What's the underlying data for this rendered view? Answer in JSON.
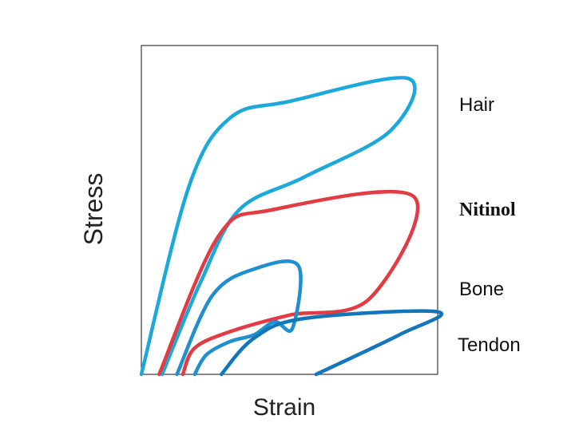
{
  "chart_data": {
    "type": "line",
    "title": "",
    "xlabel": "Strain",
    "ylabel": "Stress",
    "grid": false,
    "axis_ticks": false,
    "xlim": [
      0,
      1
    ],
    "ylim": [
      0,
      1
    ],
    "series": [
      {
        "name": "Hair",
        "color": "#1ba9dc",
        "loop": [
          [
            0.0,
            0.0
          ],
          [
            0.16,
            0.57
          ],
          [
            0.3,
            0.78
          ],
          [
            0.5,
            0.83
          ],
          [
            0.9,
            0.9
          ],
          [
            0.84,
            0.74
          ],
          [
            0.55,
            0.6
          ],
          [
            0.33,
            0.5
          ],
          [
            0.2,
            0.28
          ],
          [
            0.07,
            0.0
          ]
        ]
      },
      {
        "name": "Nitinol",
        "color": "#e23b44",
        "loop": [
          [
            0.06,
            0.0
          ],
          [
            0.26,
            0.42
          ],
          [
            0.44,
            0.5
          ],
          [
            0.92,
            0.54
          ],
          [
            0.77,
            0.23
          ],
          [
            0.5,
            0.18
          ],
          [
            0.3,
            0.13
          ],
          [
            0.18,
            0.08
          ],
          [
            0.14,
            0.0
          ]
        ]
      },
      {
        "name": "Bone",
        "color": "#1f8fce",
        "loop": [
          [
            0.12,
            0.0
          ],
          [
            0.24,
            0.24
          ],
          [
            0.38,
            0.32
          ],
          [
            0.53,
            0.33
          ],
          [
            0.51,
            0.14
          ],
          [
            0.45,
            0.16
          ],
          [
            0.38,
            0.12
          ],
          [
            0.3,
            0.1
          ],
          [
            0.22,
            0.06
          ],
          [
            0.18,
            0.0
          ]
        ]
      },
      {
        "name": "Tendon",
        "color": "#1476ba",
        "loop": [
          [
            0.27,
            0.0
          ],
          [
            0.38,
            0.11
          ],
          [
            0.55,
            0.17
          ],
          [
            1.0,
            0.19
          ],
          [
            0.87,
            0.12
          ],
          [
            0.59,
            0.0
          ]
        ]
      }
    ]
  }
}
